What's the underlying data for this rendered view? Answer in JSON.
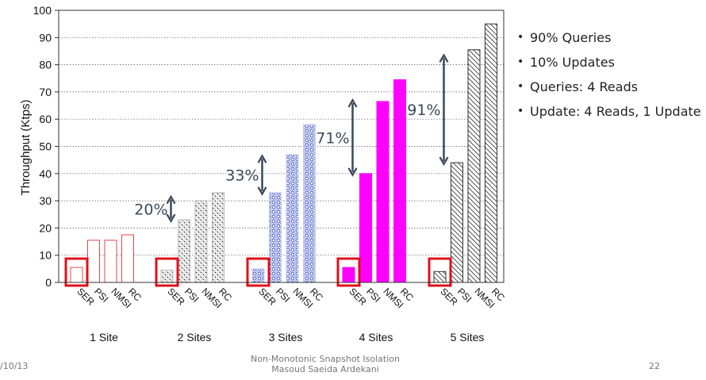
{
  "chart_data": {
    "type": "bar",
    "ylabel": "Throughput (Ktps)",
    "ylim": [
      0,
      100
    ],
    "yticks": [
      0,
      10,
      20,
      30,
      40,
      50,
      60,
      70,
      80,
      90,
      100
    ],
    "grid": true,
    "categories": [
      "SER",
      "PSI",
      "NMSI",
      "RC"
    ],
    "groups": [
      {
        "label": "1 Site",
        "values": [
          5.5,
          15.5,
          15.5,
          17.5
        ],
        "color": "#e8434b",
        "pattern": "outline"
      },
      {
        "label": "2 Sites",
        "values": [
          4.5,
          23,
          30,
          33
        ],
        "color": "#333333",
        "pattern": "dots"
      },
      {
        "label": "3 Sites",
        "values": [
          5,
          33,
          47,
          58
        ],
        "color": "#3b4fc4",
        "pattern": "lattice"
      },
      {
        "label": "4 Sites",
        "values": [
          5.5,
          40,
          66.5,
          74.5
        ],
        "color": "#ff00ff",
        "pattern": "solid"
      },
      {
        "label": "5 Sites",
        "values": [
          4,
          44,
          85.5,
          95
        ],
        "color": "#333333",
        "pattern": "hatch"
      }
    ],
    "annotations": [
      {
        "text": "20%",
        "group": 1,
        "from": 23,
        "to": 31
      },
      {
        "text": "33%",
        "group": 2,
        "from": 33,
        "to": 46
      },
      {
        "text": "71%",
        "group": 3,
        "from": 40,
        "to": 66.5
      },
      {
        "text": "91%",
        "group": 4,
        "from": 44,
        "to": 83
      }
    ],
    "highlight": "SER",
    "highlight_color": "#e0101a",
    "arrow_color": "#3a4a5a"
  },
  "bullets": [
    "90% Queries",
    "10% Updates",
    "Queries: 4 Reads",
    "Update: 4 Reads, 1 Update"
  ],
  "bullet_char": "•",
  "footer": {
    "date": "/10/13",
    "center_line1": "Non-Monotonic Snapshot Isolation",
    "center_line2": "Masoud Saeida Ardekani",
    "page": "22"
  }
}
